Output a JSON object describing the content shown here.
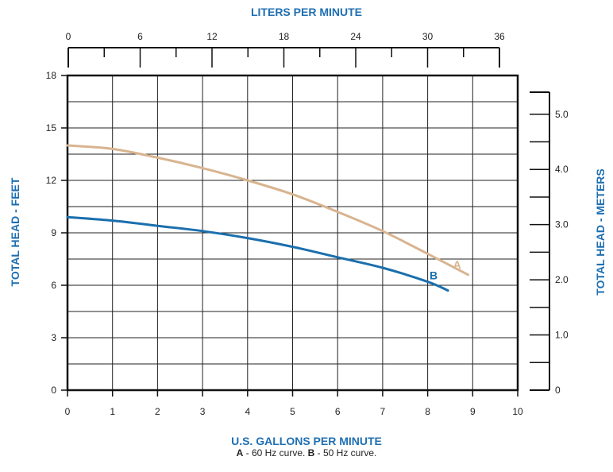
{
  "chart_data": {
    "type": "line",
    "colors": {
      "axis_title": "#1f6fb2",
      "series_a": "#d8b48f",
      "series_b": "#1a6fad",
      "grid": "#222222"
    },
    "x_bottom": {
      "label": "U.S. GALLONS PER MINUTE",
      "range": [
        0,
        10
      ],
      "ticks": [
        0,
        1,
        2,
        3,
        4,
        5,
        6,
        7,
        8,
        9,
        10
      ]
    },
    "x_top": {
      "label": "LITERS PER MINUTE",
      "range": [
        0,
        36
      ],
      "ticks": [
        0,
        6,
        12,
        18,
        24,
        30,
        36
      ]
    },
    "y_left": {
      "label": "TOTAL HEAD - FEET",
      "range": [
        0,
        18
      ],
      "ticks": [
        0,
        3,
        6,
        9,
        12,
        15,
        18
      ]
    },
    "y_right": {
      "label": "TOTAL HEAD - METERS",
      "range": [
        0,
        5.4
      ],
      "ticks": [
        "0",
        "1.0",
        "2.0",
        "3.0",
        "4.0",
        "5.0"
      ]
    },
    "grid": true,
    "series": [
      {
        "name": "A",
        "x": [
          0,
          1,
          2,
          3,
          4,
          5,
          6,
          7,
          8,
          8.9
        ],
        "y": [
          14.0,
          13.8,
          13.3,
          12.7,
          12.0,
          11.2,
          10.2,
          9.1,
          7.8,
          6.6
        ]
      },
      {
        "name": "B",
        "x": [
          0,
          1,
          2,
          3,
          4,
          5,
          6,
          7,
          8,
          8.45
        ],
        "y": [
          9.9,
          9.7,
          9.4,
          9.1,
          8.7,
          8.2,
          7.6,
          7.0,
          6.2,
          5.7
        ]
      }
    ]
  },
  "caption": {
    "a_key": "A",
    "a_text": " - 60 Hz curve.  ",
    "b_key": "B",
    "b_text": " - 50 Hz curve."
  }
}
